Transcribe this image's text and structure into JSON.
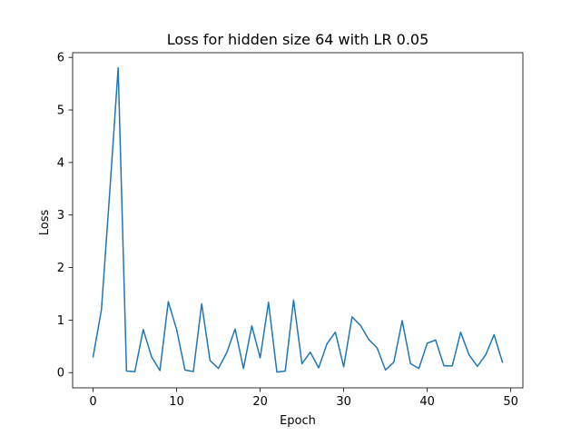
{
  "chart_data": {
    "type": "line",
    "title": "Loss for hidden size 64 with LR 0.05",
    "xlabel": "Epoch",
    "ylabel": "Loss",
    "xlim": [
      -2.45,
      51.45
    ],
    "ylim": [
      -0.29,
      6.09
    ],
    "xticks": [
      0,
      10,
      20,
      30,
      40,
      50
    ],
    "yticks": [
      0,
      1,
      2,
      3,
      4,
      5,
      6
    ],
    "grid": false,
    "series": [
      {
        "name": "Loss",
        "color": "#1f77b4",
        "x": [
          0,
          1,
          2,
          3,
          4,
          5,
          6,
          7,
          8,
          9,
          10,
          11,
          12,
          13,
          14,
          15,
          16,
          17,
          18,
          19,
          20,
          21,
          22,
          23,
          24,
          25,
          26,
          27,
          28,
          29,
          30,
          31,
          32,
          33,
          34,
          35,
          36,
          37,
          38,
          39,
          40,
          41,
          42,
          43,
          44,
          45,
          46,
          47,
          48,
          49
        ],
        "y": [
          0.3,
          1.2,
          3.45,
          5.8,
          0.03,
          0.02,
          0.82,
          0.3,
          0.04,
          1.35,
          0.82,
          0.05,
          0.02,
          1.31,
          0.23,
          0.08,
          0.38,
          0.83,
          0.08,
          0.89,
          0.28,
          1.34,
          0.01,
          0.03,
          1.38,
          0.17,
          0.39,
          0.09,
          0.55,
          0.77,
          0.11,
          1.06,
          0.9,
          0.63,
          0.47,
          0.05,
          0.2,
          0.99,
          0.17,
          0.08,
          0.56,
          0.62,
          0.13,
          0.13,
          0.77,
          0.34,
          0.12,
          0.34,
          0.72,
          0.2
        ]
      }
    ]
  }
}
